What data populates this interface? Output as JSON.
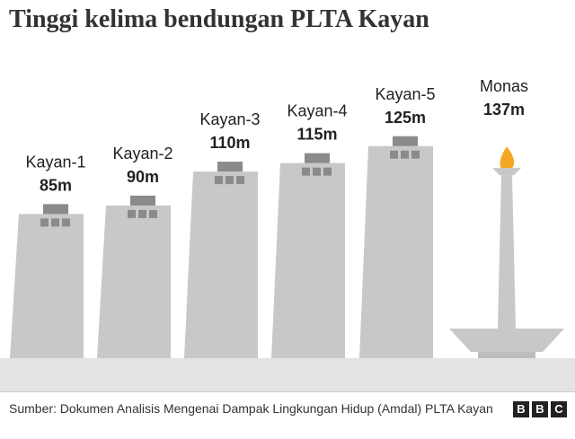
{
  "title": "Tinggi kelima bendungan PLTA Kayan",
  "source": "Sumber: Dokumen Analisis Mengenai Dampak Lingkungan Hidup (Amdal) PLTA Kayan",
  "logo": [
    "B",
    "B",
    "C"
  ],
  "colors": {
    "tower": "#c8c8c8",
    "tower_roof": "#8a8a8a",
    "ground": "#e3e3e3",
    "flame": "#f5a623"
  },
  "chart_data": {
    "type": "bar",
    "unit": "m",
    "categories": [
      "Kayan-1",
      "Kayan-2",
      "Kayan-3",
      "Kayan-4",
      "Kayan-5",
      "Monas"
    ],
    "values": [
      85,
      90,
      110,
      115,
      125,
      137
    ],
    "value_labels": [
      "85m",
      "90m",
      "110m",
      "115m",
      "125m",
      "137m"
    ],
    "title": "Tinggi kelima bendungan PLTA Kayan"
  }
}
